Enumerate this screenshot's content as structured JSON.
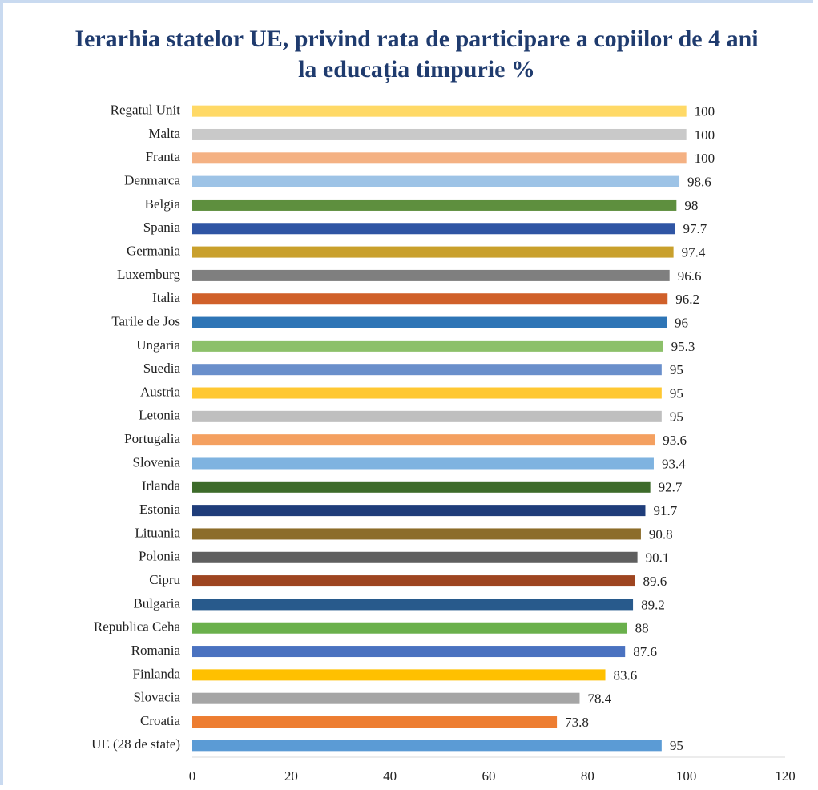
{
  "chart_data": {
    "type": "barh",
    "title": "Ierarhia statelor UE, privind rata de participare a copiilor de 4 ani la educația timpurie  %",
    "categories": [
      "Regatul Unit",
      "Malta",
      "Franta",
      "Denmarca",
      "Belgia",
      "Spania",
      "Germania",
      "Luxemburg",
      "Italia",
      "Tarile de Jos",
      "Ungaria",
      "Suedia",
      "Austria",
      "Letonia",
      "Portugalia",
      "Slovenia",
      "Irlanda",
      "Estonia",
      "Lituania",
      "Polonia",
      "Cipru",
      "Bulgaria",
      "Republica Ceha",
      "Romania",
      "Finlanda",
      "Slovacia",
      "Croatia",
      "UE (28 de state)"
    ],
    "values": [
      100,
      100,
      100,
      98.6,
      98,
      97.7,
      97.4,
      96.6,
      96.2,
      96,
      95.3,
      95,
      95,
      95,
      93.6,
      93.4,
      92.7,
      91.7,
      90.8,
      90.1,
      89.6,
      89.2,
      88,
      87.6,
      83.6,
      78.4,
      73.8,
      95
    ],
    "colors": [
      "#ffd966",
      "#c9c9c9",
      "#f4b183",
      "#9dc3e6",
      "#5e8f3e",
      "#2f55a4",
      "#c9a02c",
      "#7f7f7f",
      "#d0602a",
      "#2e75b6",
      "#8cc06a",
      "#6a8fcb",
      "#ffc832",
      "#bfbfbf",
      "#f4a060",
      "#7fb3e0",
      "#3d6b2a",
      "#1f3d7a",
      "#8c6d2a",
      "#5f5f5f",
      "#9e4520",
      "#285a8c",
      "#6ab04c",
      "#4a72c0",
      "#ffc000",
      "#a5a5a5",
      "#ed7d31",
      "#5b9bd5"
    ],
    "xlim": [
      0,
      120
    ],
    "xticks": [
      0,
      20,
      40,
      60,
      80,
      100,
      120
    ],
    "grid": false
  }
}
